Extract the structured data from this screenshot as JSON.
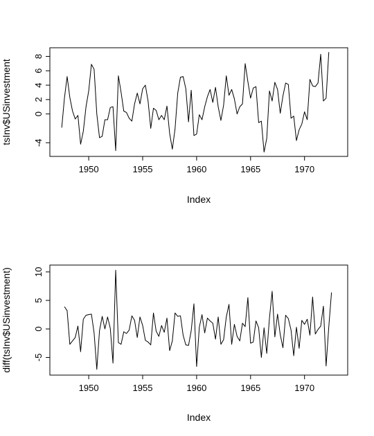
{
  "chart_data": [
    {
      "type": "line",
      "title": "",
      "xlabel": "Index",
      "ylabel": "tsInv$USinvestment",
      "xlim": [
        1946.4,
        1974.0
      ],
      "ylim": [
        -5.9,
        9.2
      ],
      "x_ticks": [
        1950,
        1955,
        1960,
        1965,
        1970
      ],
      "x_tick_labels": [
        "1950",
        "1955",
        "1960",
        "1965",
        "1970"
      ],
      "y_ticks": [
        -4,
        0,
        2,
        4,
        6,
        8
      ],
      "y_tick_labels": [
        "-4",
        "0",
        "2",
        "4",
        "6",
        "8"
      ],
      "grid": false,
      "legend": "none",
      "series": [
        {
          "x_start": 1947.5,
          "x_step": 0.25,
          "values": [
            -1.9,
            2.2,
            5.2,
            2.3,
            0.4,
            -0.7,
            -0.2,
            -4.2,
            -2.4,
            1.0,
            3.2,
            6.9,
            6.2,
            0.0,
            -3.3,
            -3.1,
            -0.8,
            -0.8,
            0.9,
            1.0,
            -5.1,
            5.3,
            3.0,
            0.4,
            0.2,
            -0.6,
            -1.0,
            1.4,
            2.9,
            1.4,
            3.5,
            4.0,
            1.8,
            -2.0,
            0.8,
            0.5,
            -0.8,
            -0.2,
            -0.8,
            1.1,
            -2.7,
            -4.9,
            -2.1,
            2.9,
            5.1,
            5.2,
            3.5,
            -1.1,
            3.3,
            -3.0,
            -2.8,
            -0.1,
            -0.8,
            1.0,
            2.4,
            3.4,
            1.6,
            3.7,
            1.0,
            -0.9,
            1.2,
            5.3,
            2.6,
            3.4,
            2.1,
            0.0,
            1.0,
            1.4,
            7.0,
            4.5,
            2.2,
            3.6,
            3.8,
            -1.2,
            -1.0,
            -5.3,
            -3.4,
            3.2,
            1.8,
            4.4,
            3.4,
            0.1,
            2.5,
            4.3,
            4.1,
            -0.6,
            -0.3,
            -3.7,
            -2.2,
            -1.4,
            0.3,
            -0.8,
            4.8,
            3.9,
            3.8,
            4.3,
            8.3,
            1.8,
            2.2,
            8.6
          ]
        }
      ]
    },
    {
      "type": "line",
      "title": "",
      "xlabel": "Index",
      "ylabel": "diff(tsInv$USinvestment)",
      "xlim": [
        1946.4,
        1974.0
      ],
      "ylim": [
        -8.1,
        11.2
      ],
      "x_ticks": [
        1950,
        1955,
        1960,
        1965,
        1970
      ],
      "x_tick_labels": [
        "1950",
        "1955",
        "1960",
        "1965",
        "1970"
      ],
      "y_ticks": [
        -5,
        0,
        5,
        10
      ],
      "y_tick_labels": [
        "-5",
        "0",
        "5",
        "10"
      ],
      "grid": false,
      "legend": "none",
      "series": [
        {
          "x_start": 1947.75,
          "x_step": 0.25,
          "values": [
            3.9,
            3.2,
            -2.7,
            -2.1,
            -1.5,
            0.5,
            -4.0,
            1.7,
            2.4,
            2.5,
            2.6,
            -0.7,
            -7.1,
            -0.3,
            2.2,
            0.0,
            2.1,
            0.1,
            -6.0,
            10.3,
            -2.4,
            -2.7,
            -0.5,
            -0.8,
            -0.2,
            2.3,
            1.5,
            -1.5,
            2.1,
            0.6,
            -2.0,
            -2.3,
            -2.8,
            2.8,
            -0.4,
            -1.3,
            0.6,
            -0.6,
            1.9,
            -3.8,
            -2.1,
            2.8,
            2.2,
            2.3,
            -1.1,
            -2.8,
            -2.9,
            -0.3,
            4.4,
            -6.6,
            0.3,
            2.5,
            -0.7,
            1.9,
            1.4,
            1.0,
            -1.8,
            2.1,
            -2.7,
            -1.9,
            2.1,
            4.3,
            -2.7,
            0.8,
            -1.3,
            -2.1,
            1.0,
            0.4,
            5.5,
            -2.5,
            -2.3,
            1.4,
            0.2,
            -5.0,
            0.2,
            -4.3,
            1.9,
            6.6,
            -1.4,
            2.6,
            -1.0,
            -3.3,
            2.4,
            1.8,
            -0.2,
            -4.7,
            0.3,
            -3.4,
            1.5,
            0.8,
            1.7,
            -1.1,
            5.6,
            -0.9,
            -0.1,
            0.5,
            4.0,
            -6.5,
            0.4,
            6.4
          ]
        }
      ]
    }
  ]
}
